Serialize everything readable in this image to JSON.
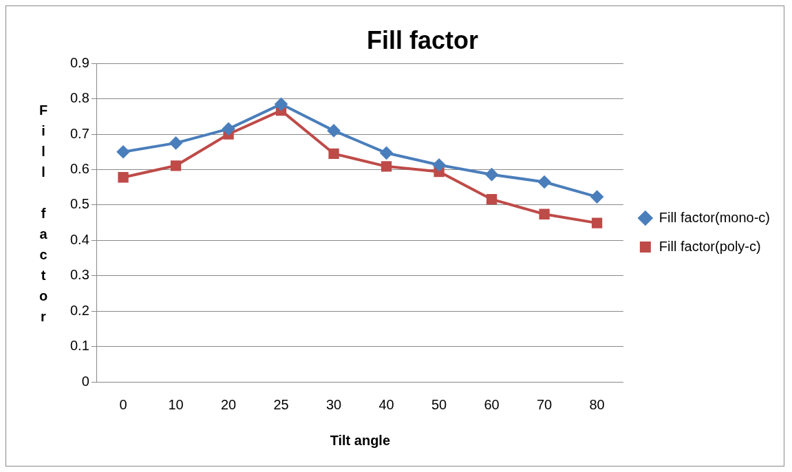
{
  "chart_data": {
    "type": "line",
    "title": "Fill factor",
    "xlabel": "Tilt angle",
    "ylabel": "Fill factor",
    "categories": [
      "0",
      "10",
      "20",
      "25",
      "30",
      "40",
      "50",
      "60",
      "70",
      "80"
    ],
    "series": [
      {
        "name": "Fill factor(mono-c)",
        "color": "#4a7ebb",
        "marker": "diamond",
        "values": [
          0.65,
          0.675,
          0.715,
          0.785,
          0.71,
          0.647,
          0.613,
          0.586,
          0.565,
          0.523
        ]
      },
      {
        "name": "Fill factor(poly-c)",
        "color": "#be4b48",
        "marker": "square",
        "values": [
          0.578,
          0.611,
          0.7,
          0.767,
          0.645,
          0.609,
          0.594,
          0.516,
          0.474,
          0.449
        ]
      }
    ],
    "ylim": [
      0,
      0.9
    ],
    "yticks": [
      0,
      0.1,
      0.2,
      0.3,
      0.4,
      0.5,
      0.6,
      0.7,
      0.8,
      0.9
    ],
    "grid": "y",
    "legend": "right",
    "line_style": "solid"
  }
}
